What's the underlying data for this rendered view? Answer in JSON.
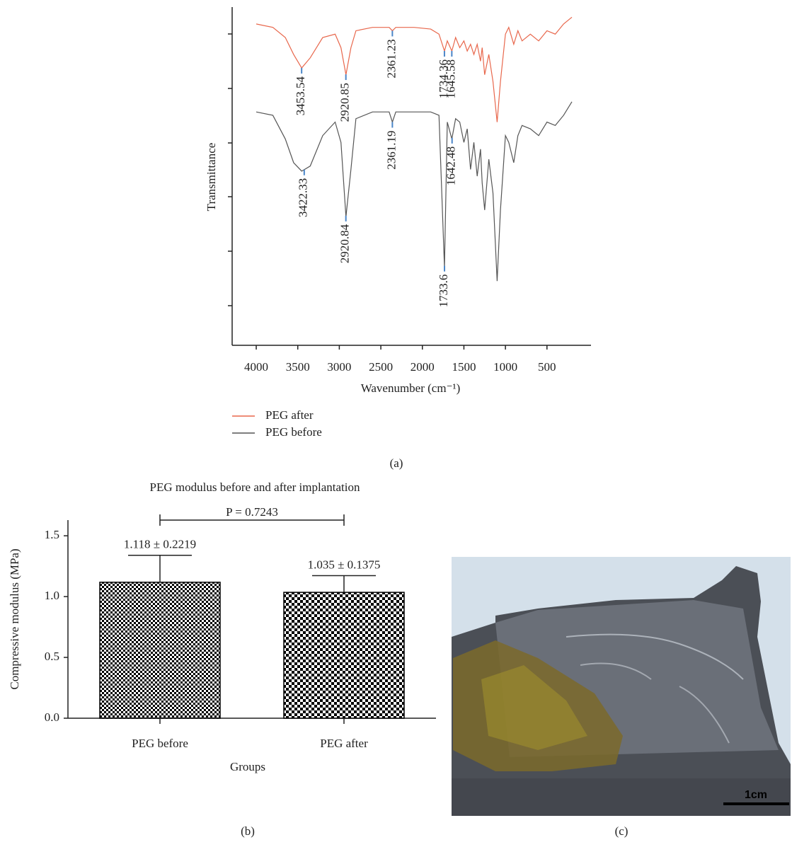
{
  "chart_data": [
    {
      "type": "line",
      "xlabel": "Wavenumber (cm⁻¹)",
      "ylabel": "Transmittance",
      "xlim": [
        4290,
        -30
      ],
      "ylim": [
        0,
        100
      ],
      "xticks": [
        4000,
        3500,
        3000,
        2500,
        2000,
        1500,
        1000,
        500
      ],
      "x": [
        4000,
        3800,
        3650,
        3550,
        3453,
        3350,
        3200,
        3050,
        2980,
        2920,
        2860,
        2800,
        2600,
        2400,
        2361,
        2320,
        2100,
        1900,
        1800,
        1734,
        1700,
        1645,
        1600,
        1550,
        1500,
        1460,
        1420,
        1380,
        1340,
        1300,
        1280,
        1250,
        1200,
        1150,
        1100,
        1060,
        1000,
        960,
        900,
        850,
        800,
        700,
        600,
        500,
        400,
        300,
        200
      ],
      "peak_color": "#4a86c8",
      "series": [
        {
          "name": "PEG after",
          "color": "#e8674c",
          "values": [
            95,
            94,
            91,
            86,
            82,
            85,
            91,
            92,
            88,
            80,
            88,
            93,
            94,
            94,
            93,
            94,
            94,
            93.5,
            92,
            87,
            90,
            87,
            91,
            88,
            90,
            87,
            89,
            86,
            89,
            84,
            88,
            80,
            86,
            78,
            66,
            78,
            92,
            94,
            89,
            93,
            90,
            92,
            90,
            93,
            92,
            95,
            97
          ],
          "peaks": [
            3453.54,
            2920.85,
            2361.23,
            1734.36,
            1645.58
          ]
        },
        {
          "name": "PEG before",
          "color": "#555555",
          "values": [
            69,
            68,
            61,
            54,
            51.5,
            53,
            62,
            66,
            60,
            38,
            52,
            67,
            69,
            69,
            66,
            69,
            69,
            69,
            68,
            23,
            66,
            61,
            67,
            66,
            60,
            64,
            52,
            60,
            50,
            58,
            48,
            40,
            55,
            45,
            19,
            40,
            62,
            60,
            54,
            62,
            65,
            64,
            62,
            66,
            65,
            68,
            72
          ],
          "peaks": [
            3422.33,
            2920.84,
            2361.19,
            1733.6,
            1642.48
          ]
        }
      ]
    },
    {
      "type": "bar",
      "title": "PEG modulus before and after implantation",
      "xlabel": "Groups",
      "ylabel": "Compressive modulus (MPa)",
      "categories": [
        "PEG before",
        "PEG after"
      ],
      "values": [
        1.118,
        1.035
      ],
      "errors": [
        0.2219,
        0.1375
      ],
      "value_labels": [
        "1.118 ± 0.2219",
        "1.035 ± 0.1375"
      ],
      "annotation": "P = 0.7243",
      "color": "#000000",
      "ylim": [
        0,
        1.6
      ],
      "yticks": [
        {
          "value": 0,
          "label": "0.0"
        },
        0.5,
        {
          "value": 1,
          "label": "1.0"
        },
        1.5
      ]
    }
  ],
  "image": {
    "scale_label": "1cm"
  },
  "captions": [
    "(a)",
    "(b)",
    "(c)"
  ]
}
